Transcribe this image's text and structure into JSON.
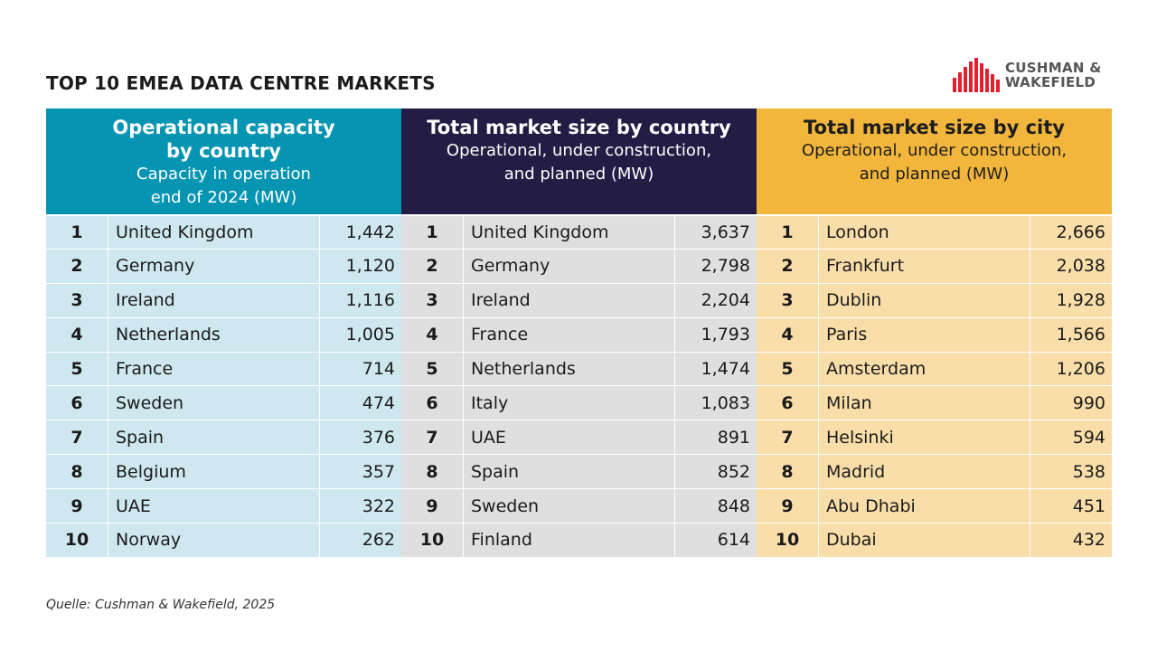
{
  "title": "TOP 10 EMEA DATA CENTRE MARKETS",
  "logo": {
    "line1": "CUSHMAN &",
    "line2": "WAKEFIELD",
    "color": "#e4202e"
  },
  "panels": [
    {
      "heading": "Operational capacity by country",
      "heading_lines": [
        "Operational capacity",
        "by country"
      ],
      "sub_lines": [
        "Capacity in operation",
        "end of 2024 (MW)"
      ],
      "color": "#0594b2",
      "rows": [
        {
          "rank": "1",
          "name": "United Kingdom",
          "value": "1,442"
        },
        {
          "rank": "2",
          "name": "Germany",
          "value": "1,120"
        },
        {
          "rank": "3",
          "name": "Ireland",
          "value": "1,116"
        },
        {
          "rank": "4",
          "name": "Netherlands",
          "value": "1,005"
        },
        {
          "rank": "5",
          "name": "France",
          "value": "714"
        },
        {
          "rank": "6",
          "name": "Sweden",
          "value": "474"
        },
        {
          "rank": "7",
          "name": "Spain",
          "value": "376"
        },
        {
          "rank": "8",
          "name": "Belgium",
          "value": "357"
        },
        {
          "rank": "9",
          "name": "UAE",
          "value": "322"
        },
        {
          "rank": "10",
          "name": "Norway",
          "value": "262"
        }
      ]
    },
    {
      "heading_lines": [
        "Total market size by country"
      ],
      "sub_lines": [
        "Operational, under construction,",
        "and planned (MW)"
      ],
      "color": "#231c44",
      "rows": [
        {
          "rank": "1",
          "name": "United Kingdom",
          "value": "3,637"
        },
        {
          "rank": "2",
          "name": "Germany",
          "value": "2,798"
        },
        {
          "rank": "3",
          "name": "Ireland",
          "value": "2,204"
        },
        {
          "rank": "4",
          "name": "France",
          "value": "1,793"
        },
        {
          "rank": "5",
          "name": "Netherlands",
          "value": "1,474"
        },
        {
          "rank": "6",
          "name": "Italy",
          "value": "1,083"
        },
        {
          "rank": "7",
          "name": "UAE",
          "value": "891"
        },
        {
          "rank": "8",
          "name": "Spain",
          "value": "852"
        },
        {
          "rank": "9",
          "name": "Sweden",
          "value": "848"
        },
        {
          "rank": "10",
          "name": "Finland",
          "value": "614"
        }
      ]
    },
    {
      "heading_lines": [
        "Total market size by city"
      ],
      "sub_lines": [
        "Operational, under construction,",
        "and planned (MW)"
      ],
      "color": "#f2b63c",
      "rows": [
        {
          "rank": "1",
          "name": "London",
          "value": "2,666"
        },
        {
          "rank": "2",
          "name": "Frankfurt",
          "value": "2,038"
        },
        {
          "rank": "3",
          "name": "Dublin",
          "value": "1,928"
        },
        {
          "rank": "4",
          "name": "Paris",
          "value": "1,566"
        },
        {
          "rank": "5",
          "name": "Amsterdam",
          "value": "1,206"
        },
        {
          "rank": "6",
          "name": "Milan",
          "value": "990"
        },
        {
          "rank": "7",
          "name": "Helsinki",
          "value": "594"
        },
        {
          "rank": "8",
          "name": "Madrid",
          "value": "538"
        },
        {
          "rank": "9",
          "name": "Abu Dhabi",
          "value": "451"
        },
        {
          "rank": "10",
          "name": "Dubai",
          "value": "432"
        }
      ]
    }
  ],
  "source": "Quelle: Cushman & Wakefield, 2025"
}
